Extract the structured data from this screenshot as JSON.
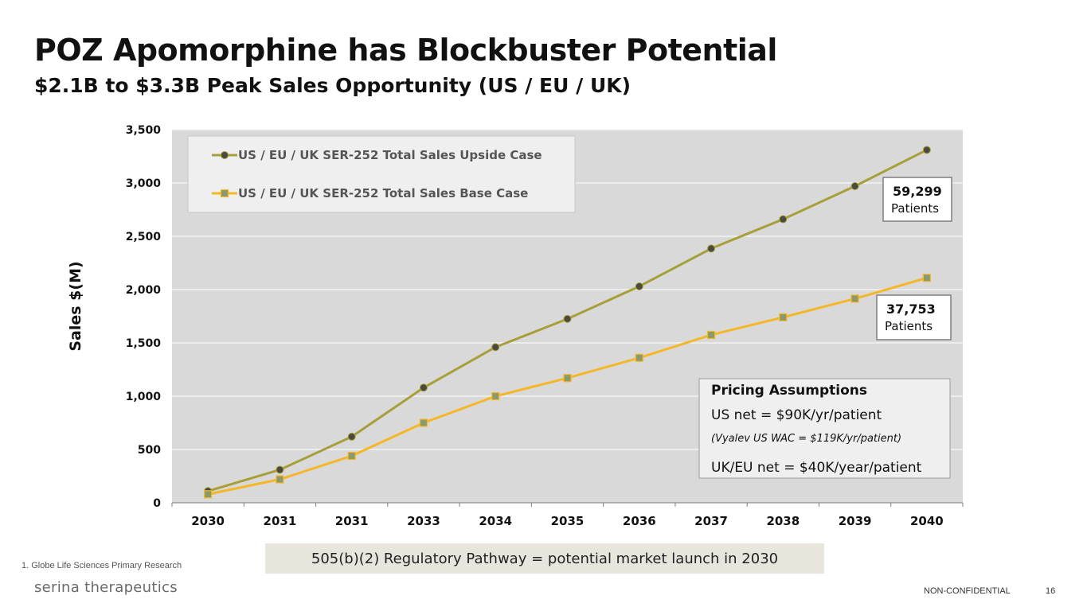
{
  "slide": {
    "title": "POZ Apomorphine has Blockbuster Potential",
    "subtitle": "$2.1B to $3.3B Peak Sales Opportunity (US / EU / UK)",
    "footnote": "1.  Globe Life Sciences Primary Research",
    "banner": "505(b)(2) Regulatory Pathway = potential market launch in 2030",
    "logo_text": "serina therapeutics",
    "confidentiality": "NON-CONFIDENTIAL",
    "page_number": "16"
  },
  "chart_data": {
    "type": "line",
    "title": "",
    "xlabel": "",
    "ylabel": "Sales $(M)",
    "ylim": [
      0,
      3500
    ],
    "yticks": [
      0,
      500,
      1000,
      1500,
      2000,
      2500,
      3000,
      3500
    ],
    "ytick_labels": [
      "0",
      "500",
      "1,000",
      "1,500",
      "2,000",
      "2,500",
      "3,000",
      "3,500"
    ],
    "categories": [
      "2030",
      "2031",
      "2031",
      "2033",
      "2034",
      "2035",
      "2036",
      "2037",
      "2038",
      "2039",
      "2040"
    ],
    "grid": true,
    "legend_position": "top-left",
    "series": [
      {
        "name": "US / EU / UK SER-252 Total Sales Upside Case",
        "marker": "circle",
        "color": "#a89f3a",
        "marker_color": "#4a4a3e",
        "values": [
          110,
          310,
          620,
          1080,
          1460,
          1725,
          2030,
          2385,
          2660,
          2970,
          3310
        ]
      },
      {
        "name": "US / EU / UK SER-252 Total Sales Base Case",
        "marker": "square",
        "color": "#f5b728",
        "marker_color": "#8a9a6a",
        "values": [
          80,
          220,
          440,
          750,
          1000,
          1170,
          1360,
          1575,
          1740,
          1915,
          2110
        ]
      }
    ],
    "annotations": [
      {
        "value": "59,299",
        "label": "Patients",
        "series": 0
      },
      {
        "value": "37,753",
        "label": "Patients",
        "series": 1
      }
    ],
    "pricing_box": {
      "heading": "Pricing Assumptions",
      "line1": "US net = $90K/yr/patient",
      "note": "(Vyalev US WAC = $119K/yr/patient)",
      "line2": "UK/EU net = $40K/year/patient"
    },
    "colors": {
      "plot_background": "#d9d9d9",
      "gridline": "#f2f2f2",
      "axis": "#7f7f7f"
    }
  }
}
